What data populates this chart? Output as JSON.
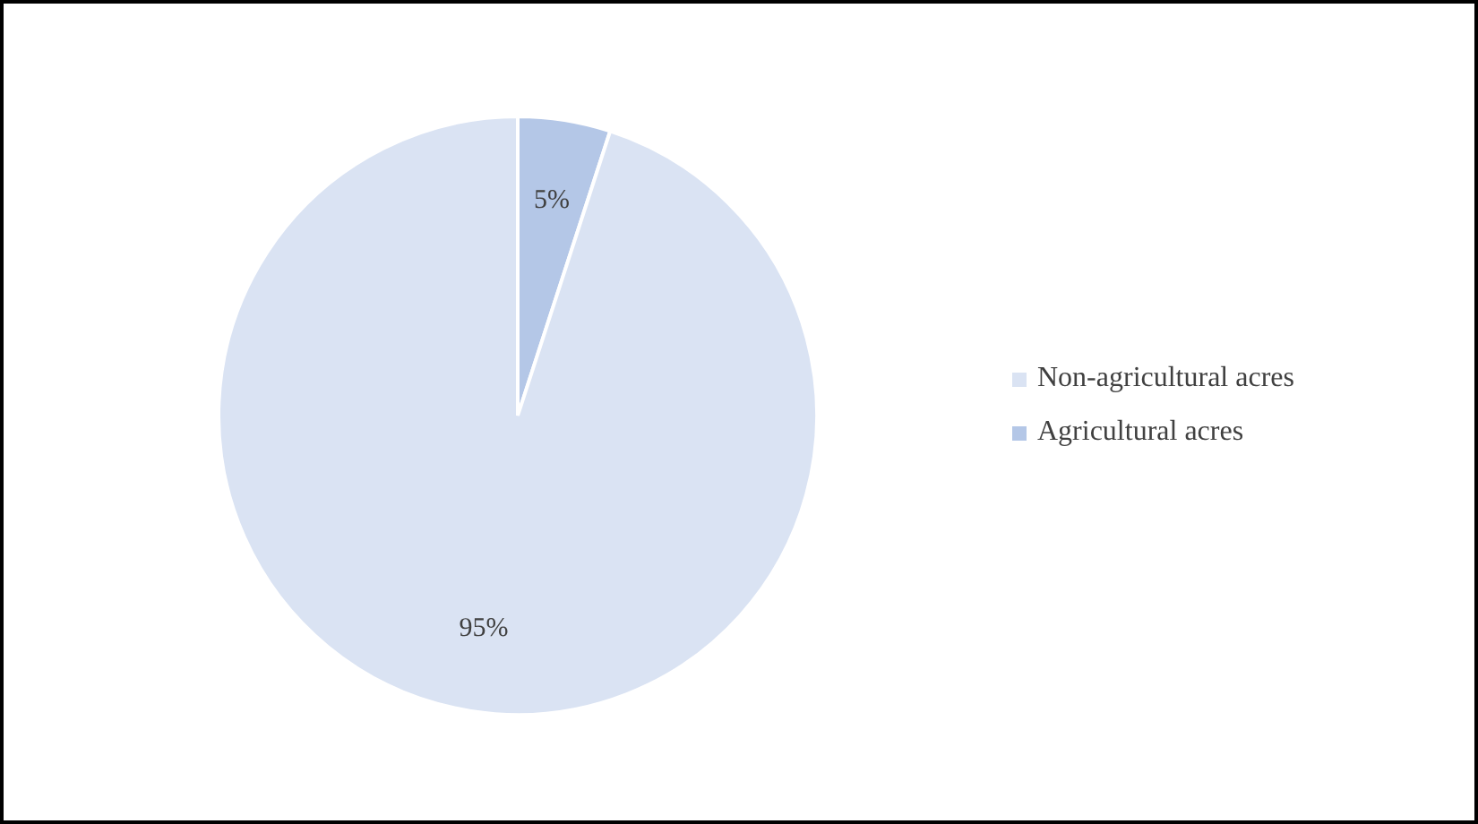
{
  "chart_data": {
    "type": "pie",
    "categories": [
      "Non-agricultural acres",
      "Agricultural acres"
    ],
    "values": [
      95,
      5
    ],
    "colors": [
      "#dae3f3",
      "#b4c7e7"
    ],
    "value_labels": [
      "95%",
      "5%"
    ],
    "legend": "right"
  }
}
